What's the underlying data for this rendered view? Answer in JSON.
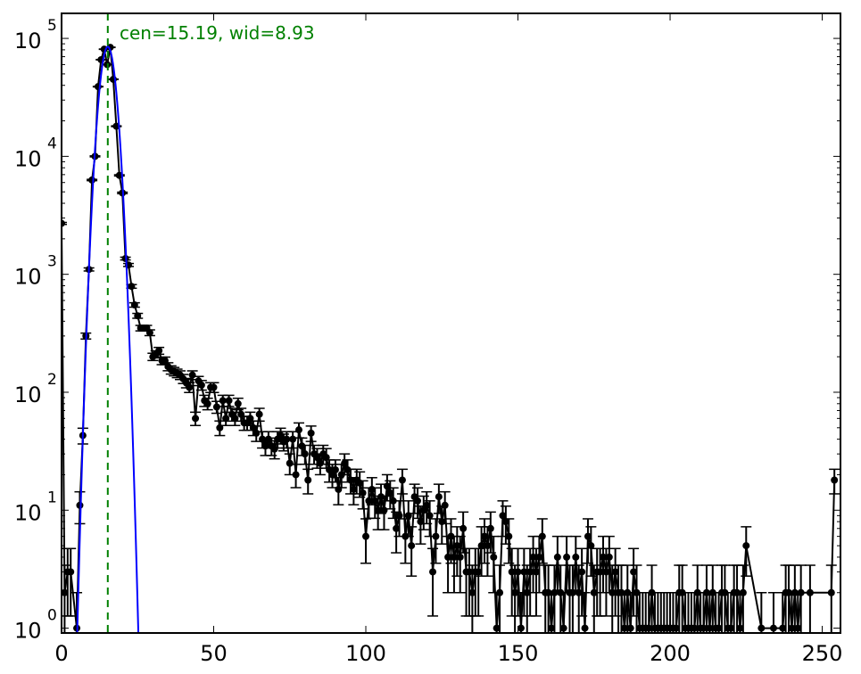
{
  "chart_data": {
    "type": "scatter",
    "title": "",
    "xlabel": "",
    "ylabel": "",
    "xlim": [
      0,
      256
    ],
    "ylim": [
      0.91,
      163000
    ],
    "yscale": "log",
    "grid": false,
    "x_ticks": [
      0,
      50,
      100,
      150,
      200,
      250
    ],
    "y_ticks": [
      {
        "base": "10",
        "exp": "0",
        "value": 1
      },
      {
        "base": "10",
        "exp": "1",
        "value": 10
      },
      {
        "base": "10",
        "exp": "2",
        "value": 100
      },
      {
        "base": "10",
        "exp": "3",
        "value": 1000
      },
      {
        "base": "10",
        "exp": "4",
        "value": 10000
      },
      {
        "base": "10",
        "exp": "5",
        "value": 100000
      }
    ],
    "series": [
      {
        "style": "black points with error bars, connected",
        "color": "#000000",
        "x_start": 0,
        "values": [
          2700,
          2,
          3,
          3,
          null,
          1,
          11,
          43,
          300,
          1100,
          6300,
          10000,
          39000,
          66000,
          81000,
          60000,
          84000,
          45000,
          18000,
          6900,
          4900,
          1360,
          1200,
          790,
          550,
          445,
          350,
          350,
          350,
          320,
          200,
          210,
          225,
          185,
          185,
          165,
          155,
          150,
          145,
          140,
          130,
          120,
          110,
          140,
          60,
          125,
          115,
          85,
          80,
          110,
          110,
          75,
          50,
          85,
          60,
          85,
          65,
          60,
          80,
          65,
          55,
          55,
          60,
          50,
          45,
          65,
          40,
          35,
          40,
          35,
          33,
          40,
          43,
          38,
          40,
          25,
          40,
          20,
          48,
          35,
          30,
          18,
          45,
          30,
          28,
          25,
          30,
          28,
          22,
          20,
          22,
          15,
          20,
          25,
          22,
          18,
          15,
          18,
          17,
          14,
          6,
          12,
          15,
          12,
          10,
          13,
          10,
          16,
          14,
          12,
          7,
          9,
          18,
          6,
          9,
          5,
          13,
          12,
          8,
          10,
          11,
          9,
          3,
          6,
          13,
          8,
          11,
          4,
          6,
          4,
          5,
          4,
          7,
          3,
          3,
          2,
          3,
          3,
          5,
          6,
          5,
          7,
          4,
          1,
          2,
          9,
          8,
          6,
          3,
          2,
          3,
          1,
          3,
          2,
          3,
          4,
          3,
          4,
          6,
          2,
          2,
          1,
          2,
          4,
          2,
          1,
          4,
          2,
          2,
          4,
          2,
          3,
          1,
          6,
          5,
          2,
          3,
          3,
          4,
          3,
          4,
          2,
          3,
          2,
          2,
          1,
          2,
          1,
          3,
          2,
          1,
          1,
          1,
          1,
          2,
          1,
          1,
          1,
          1,
          1,
          1,
          1,
          1,
          2,
          2,
          1,
          1,
          1,
          1,
          2,
          1,
          1,
          2,
          1,
          2,
          1,
          1,
          2,
          2,
          1,
          1,
          2,
          2,
          1,
          2,
          5,
          null,
          null,
          null,
          null,
          1,
          null,
          null,
          null,
          1,
          null,
          null,
          1,
          2,
          2,
          1,
          2,
          1,
          2,
          null,
          null,
          2,
          null,
          null,
          null,
          null,
          null,
          null,
          2,
          18,
          null
        ]
      }
    ],
    "fit": {
      "type": "gaussian",
      "color": "#0000ff",
      "center": 15.19,
      "amplitude": 85000,
      "sigma": 2.1
    },
    "center_line": {
      "x": 15.19,
      "color": "#008000",
      "style": "dashed"
    },
    "annotation": {
      "text": "cen=15.19, wid=8.93",
      "color": "#008000"
    }
  }
}
